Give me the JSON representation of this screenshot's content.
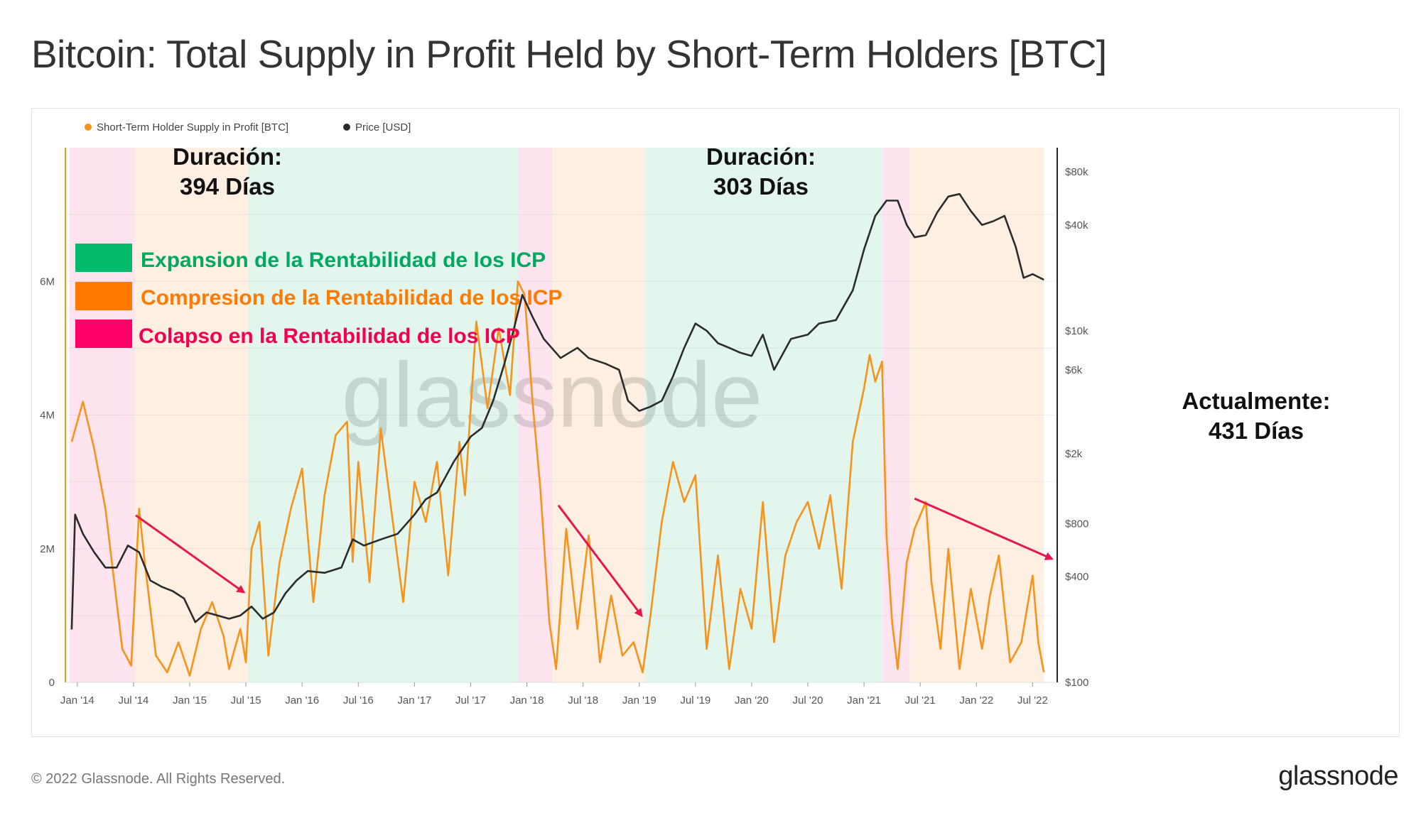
{
  "title": "Bitcoin: Total Supply in Profit Held by Short-Term Holders [BTC]",
  "footer": "© 2022 Glassnode. All Rights Reserved.",
  "brand": "glassnode",
  "watermark": "glassnode",
  "colors": {
    "supply": "#f7931a",
    "price": "#2b2b2b",
    "expansion": "#00b96b",
    "compression": "#ff7a00",
    "collapse": "#ff0066",
    "arrow": "#e8164f"
  },
  "legend_boxes": [
    {
      "label": "Expansion de la Rentabilidad de los ICP",
      "color": "#00b96b"
    },
    {
      "label": "Compresion de la Rentabilidad de los ICP",
      "color": "#ff7a00"
    },
    {
      "label": "Colapso en la Rentabilidad de los ICP",
      "color": "#ff0066"
    }
  ],
  "annotations": {
    "a1_line1": "Duración:",
    "a1_line2": "394 Días",
    "a2_line1": "Duración:",
    "a2_line2": "303 Días",
    "a3_line1": "Actualmente:",
    "a3_line2": "431 Días"
  },
  "chart_data": {
    "type": "line",
    "title": "Bitcoin: Total Supply in Profit Held by Short-Term Holders [BTC]",
    "legend": [
      "Short-Term Holder Supply in Profit [BTC]",
      "Price [USD]"
    ],
    "x_ticks": [
      "Jan '14",
      "Jul '14",
      "Jan '15",
      "Jul '15",
      "Jan '16",
      "Jul '16",
      "Jan '17",
      "Jul '17",
      "Jan '18",
      "Jul '18",
      "Jan '19",
      "Jul '19",
      "Jan '20",
      "Jul '20",
      "Jan '21",
      "Jul '21",
      "Jan '22",
      "Jul '22"
    ],
    "x_range": [
      2013.9,
      2022.7
    ],
    "y_left": {
      "label": "Short-Term Holder Supply in Profit [BTC]",
      "ticks": [
        "0",
        "2M",
        "4M",
        "6M"
      ],
      "tick_values": [
        0,
        2000000,
        4000000,
        6000000
      ],
      "range": [
        0,
        8000000
      ]
    },
    "y_right": {
      "label": "Price [USD]",
      "scale": "log",
      "ticks": [
        "$100",
        "$400",
        "$800",
        "$2k",
        "$6k",
        "$10k",
        "$40k",
        "$80k"
      ],
      "tick_values": [
        100,
        400,
        800,
        2000,
        6000,
        10000,
        40000,
        80000
      ]
    },
    "regimes": [
      {
        "type": "collapse",
        "start": 2013.93,
        "end": 2014.51
      },
      {
        "type": "compression",
        "start": 2014.51,
        "end": 2015.52
      },
      {
        "type": "expansion",
        "start": 2015.52,
        "end": 2017.92
      },
      {
        "type": "collapse",
        "start": 2017.92,
        "end": 2018.23
      },
      {
        "type": "compression",
        "start": 2018.23,
        "end": 2019.05
      },
      {
        "type": "expansion",
        "start": 2019.05,
        "end": 2021.16
      },
      {
        "type": "collapse",
        "start": 2021.16,
        "end": 2021.41
      },
      {
        "type": "compression",
        "start": 2021.41,
        "end": 2022.6
      }
    ],
    "series": [
      {
        "name": "Short-Term Holder Supply in Profit [BTC]",
        "axis": "left",
        "x": [
          2013.95,
          2014.05,
          2014.15,
          2014.25,
          2014.35,
          2014.4,
          2014.48,
          2014.55,
          2014.6,
          2014.7,
          2014.8,
          2014.9,
          2015.0,
          2015.1,
          2015.2,
          2015.3,
          2015.35,
          2015.45,
          2015.5,
          2015.55,
          2015.62,
          2015.7,
          2015.8,
          2015.9,
          2016.0,
          2016.1,
          2016.2,
          2016.3,
          2016.4,
          2016.45,
          2016.5,
          2016.6,
          2016.7,
          2016.8,
          2016.9,
          2017.0,
          2017.1,
          2017.2,
          2017.3,
          2017.4,
          2017.45,
          2017.55,
          2017.65,
          2017.75,
          2017.85,
          2017.92,
          2017.98,
          2018.05,
          2018.12,
          2018.2,
          2018.26,
          2018.35,
          2018.45,
          2018.55,
          2018.65,
          2018.75,
          2018.85,
          2018.95,
          2019.03,
          2019.1,
          2019.2,
          2019.3,
          2019.4,
          2019.5,
          2019.6,
          2019.7,
          2019.8,
          2019.9,
          2020.0,
          2020.1,
          2020.2,
          2020.3,
          2020.4,
          2020.5,
          2020.6,
          2020.7,
          2020.8,
          2020.9,
          2021.0,
          2021.05,
          2021.1,
          2021.16,
          2021.2,
          2021.25,
          2021.3,
          2021.38,
          2021.45,
          2021.55,
          2021.6,
          2021.68,
          2021.75,
          2021.85,
          2021.95,
          2022.05,
          2022.12,
          2022.2,
          2022.3,
          2022.4,
          2022.5,
          2022.55,
          2022.6
        ],
        "y": [
          3600000,
          4200000,
          3500000,
          2600000,
          1200000,
          500000,
          250000,
          2600000,
          1800000,
          400000,
          150000,
          600000,
          100000,
          800000,
          1200000,
          700000,
          200000,
          800000,
          300000,
          2000000,
          2400000,
          400000,
          1800000,
          2600000,
          3200000,
          1200000,
          2800000,
          3700000,
          3900000,
          1800000,
          3300000,
          1500000,
          3800000,
          2500000,
          1200000,
          3000000,
          2400000,
          3300000,
          1600000,
          3600000,
          2800000,
          5400000,
          4100000,
          5300000,
          4300000,
          6000000,
          5800000,
          4200000,
          2900000,
          900000,
          200000,
          2300000,
          800000,
          2200000,
          300000,
          1300000,
          400000,
          600000,
          150000,
          1000000,
          2400000,
          3300000,
          2700000,
          3100000,
          500000,
          1900000,
          200000,
          1400000,
          800000,
          2700000,
          600000,
          1900000,
          2400000,
          2700000,
          2000000,
          2800000,
          1400000,
          3600000,
          4400000,
          4900000,
          4500000,
          4800000,
          2200000,
          900000,
          200000,
          1800000,
          2300000,
          2700000,
          1500000,
          500000,
          2000000,
          200000,
          1400000,
          500000,
          1300000,
          1900000,
          300000,
          600000,
          1600000,
          600000,
          150000
        ]
      },
      {
        "name": "Price [USD]",
        "axis": "right",
        "x": [
          2013.95,
          2013.98,
          2014.05,
          2014.15,
          2014.25,
          2014.35,
          2014.45,
          2014.55,
          2014.65,
          2014.75,
          2014.85,
          2014.95,
          2015.05,
          2015.15,
          2015.25,
          2015.35,
          2015.45,
          2015.55,
          2015.65,
          2015.75,
          2015.85,
          2015.95,
          2016.05,
          2016.2,
          2016.35,
          2016.45,
          2016.55,
          2016.7,
          2016.85,
          2017.0,
          2017.1,
          2017.2,
          2017.35,
          2017.5,
          2017.6,
          2017.7,
          2017.8,
          2017.88,
          2017.96,
          2018.05,
          2018.15,
          2018.3,
          2018.45,
          2018.55,
          2018.7,
          2018.82,
          2018.9,
          2019.0,
          2019.1,
          2019.2,
          2019.3,
          2019.4,
          2019.5,
          2019.6,
          2019.7,
          2019.8,
          2019.9,
          2020.0,
          2020.1,
          2020.2,
          2020.35,
          2020.5,
          2020.6,
          2020.75,
          2020.9,
          2021.0,
          2021.1,
          2021.2,
          2021.3,
          2021.38,
          2021.45,
          2021.55,
          2021.65,
          2021.75,
          2021.85,
          2021.95,
          2022.05,
          2022.15,
          2022.25,
          2022.35,
          2022.42,
          2022.5,
          2022.6
        ],
        "y": [
          200,
          900,
          700,
          550,
          450,
          450,
          600,
          550,
          380,
          350,
          330,
          300,
          220,
          250,
          240,
          230,
          240,
          270,
          230,
          250,
          320,
          380,
          430,
          420,
          450,
          650,
          600,
          650,
          700,
          900,
          1100,
          1200,
          1800,
          2500,
          2800,
          4000,
          6500,
          10000,
          16000,
          12000,
          9000,
          7000,
          8000,
          7000,
          6500,
          6000,
          4000,
          3500,
          3700,
          4000,
          5500,
          8000,
          11000,
          10000,
          8500,
          8000,
          7500,
          7200,
          9500,
          6000,
          9000,
          9500,
          11000,
          11500,
          17000,
          29000,
          45000,
          55000,
          55000,
          40000,
          34000,
          35000,
          47000,
          58000,
          60000,
          48000,
          40000,
          42000,
          45000,
          30000,
          20000,
          21000,
          19500
        ]
      }
    ]
  }
}
